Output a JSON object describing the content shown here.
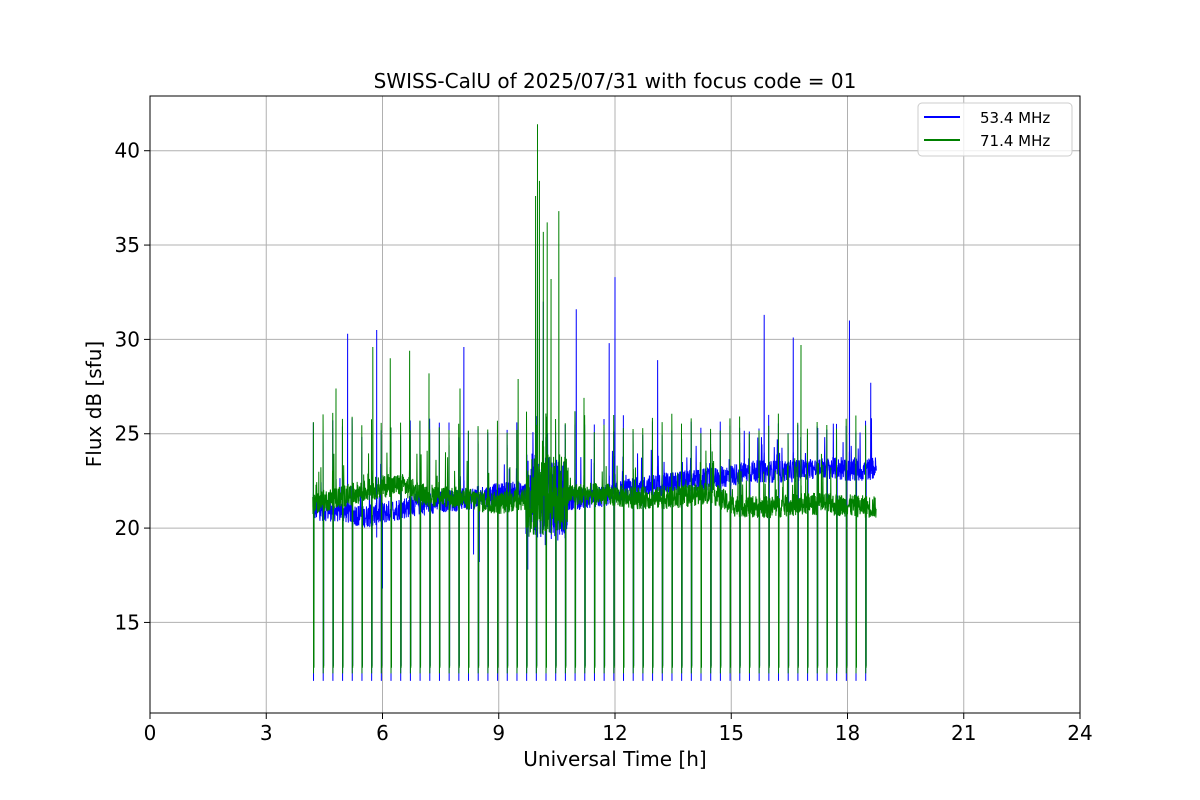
{
  "chart_data": {
    "type": "line",
    "title": "SWISS-CalU of 2025/07/31 with focus code = 01",
    "xlabel": "Universal Time [h]",
    "ylabel": "Flux dB [sfu]",
    "xlim": [
      0,
      24
    ],
    "ylim": [
      10.2,
      42.9
    ],
    "xticks": [
      0,
      3,
      6,
      9,
      12,
      15,
      18,
      21,
      24
    ],
    "yticks": [
      15,
      20,
      25,
      30,
      35,
      40
    ],
    "grid": true,
    "legend_position": "top-right",
    "calibration": {
      "start": 4.22,
      "end": 18.5,
      "period": 0.25
    },
    "series": [
      {
        "name": "53.4 MHz",
        "color": "#0000ff",
        "baseline": [
          [
            4.2,
            21.0
          ],
          [
            5.0,
            20.9
          ],
          [
            5.5,
            20.6
          ],
          [
            6.0,
            20.8
          ],
          [
            7.0,
            21.3
          ],
          [
            8.0,
            21.5
          ],
          [
            9.0,
            21.8
          ],
          [
            9.5,
            21.9
          ],
          [
            10.5,
            21.5
          ],
          [
            11.5,
            21.6
          ],
          [
            12.5,
            22.1
          ],
          [
            13.5,
            22.4
          ],
          [
            14.5,
            22.6
          ],
          [
            15.5,
            23.0
          ],
          [
            16.5,
            23.0
          ],
          [
            17.5,
            23.2
          ],
          [
            18.2,
            23.0
          ],
          [
            18.75,
            23.2
          ]
        ],
        "cal_high": 25.4,
        "cal_low": 11.9,
        "peaks": [
          [
            5.1,
            30.3
          ],
          [
            5.85,
            30.5
          ],
          [
            8.1,
            29.6
          ],
          [
            10.0,
            37.6
          ],
          [
            10.15,
            32.0
          ],
          [
            11.0,
            31.6
          ],
          [
            11.85,
            29.8
          ],
          [
            12.0,
            33.3
          ],
          [
            13.1,
            28.9
          ],
          [
            15.85,
            31.3
          ],
          [
            16.6,
            30.1
          ],
          [
            18.05,
            31.0
          ],
          [
            18.6,
            27.7
          ]
        ],
        "dips": [
          [
            5.85,
            19.5
          ],
          [
            6.0,
            16.8
          ],
          [
            8.5,
            18.2
          ],
          [
            8.35,
            18.6
          ],
          [
            9.75,
            17.8
          ],
          [
            10.2,
            19.1
          ]
        ]
      },
      {
        "name": "71.4 MHz",
        "color": "#008000",
        "baseline": [
          [
            4.2,
            21.3
          ],
          [
            5.0,
            21.7
          ],
          [
            6.0,
            22.2
          ],
          [
            6.5,
            22.3
          ],
          [
            7.0,
            21.8
          ],
          [
            8.0,
            21.6
          ],
          [
            9.0,
            21.3
          ],
          [
            9.5,
            21.5
          ],
          [
            10.5,
            21.8
          ],
          [
            11.5,
            21.8
          ],
          [
            12.5,
            21.6
          ],
          [
            13.5,
            21.6
          ],
          [
            14.5,
            21.9
          ],
          [
            15.0,
            21.2
          ],
          [
            16.0,
            21.1
          ],
          [
            17.0,
            21.3
          ],
          [
            18.0,
            21.2
          ],
          [
            18.75,
            21.1
          ]
        ],
        "cal_high": 25.6,
        "cal_low": 12.3,
        "peaks": [
          [
            4.8,
            27.4
          ],
          [
            5.75,
            29.6
          ],
          [
            6.2,
            29.0
          ],
          [
            6.7,
            29.4
          ],
          [
            7.2,
            28.2
          ],
          [
            8.0,
            27.4
          ],
          [
            9.5,
            27.9
          ],
          [
            9.95,
            37.6
          ],
          [
            10.0,
            41.4
          ],
          [
            10.05,
            38.4
          ],
          [
            10.15,
            35.7
          ],
          [
            10.25,
            36.2
          ],
          [
            10.35,
            33.2
          ],
          [
            10.55,
            36.8
          ],
          [
            11.2,
            26.9
          ],
          [
            16.8,
            29.7
          ]
        ],
        "dips": [
          [
            10.45,
            20.4
          ]
        ]
      }
    ]
  }
}
